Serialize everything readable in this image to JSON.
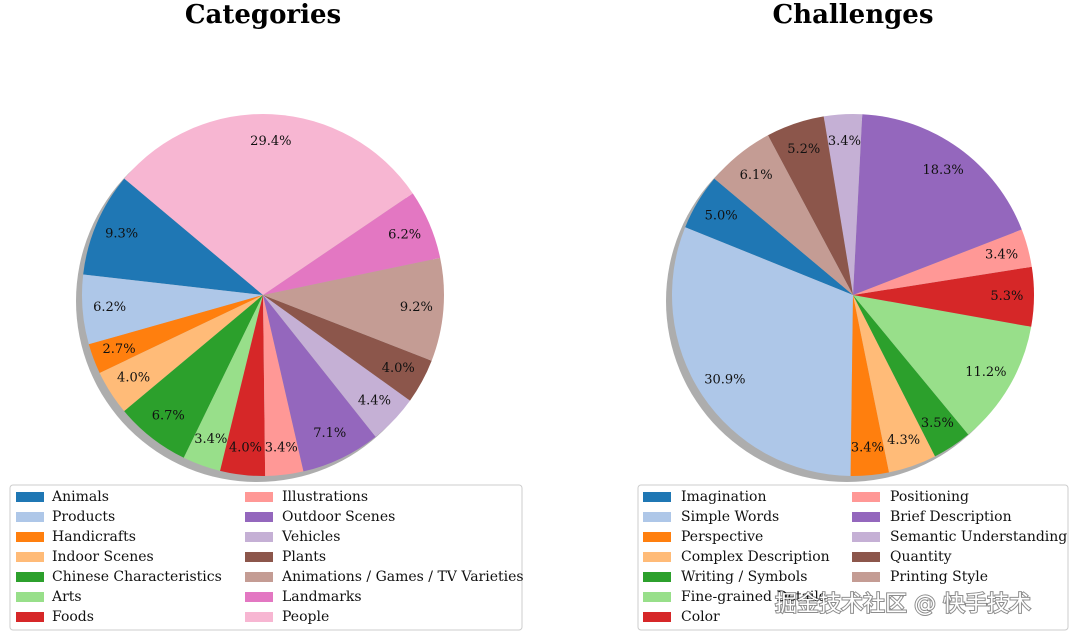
{
  "chart_data": [
    {
      "type": "pie",
      "title": "Categories",
      "categories": [
        "Animals",
        "Products",
        "Handicrafts",
        "Indoor Scenes",
        "Chinese Characteristics",
        "Arts",
        "Foods",
        "Illustrations",
        "Outdoor Scenes",
        "Vehicles",
        "Plants",
        "Animations / Games / TV Varieties",
        "Landmarks",
        "People"
      ],
      "values": [
        9.3,
        6.2,
        2.7,
        4.0,
        6.7,
        3.4,
        4.0,
        3.4,
        7.1,
        4.4,
        4.0,
        9.2,
        6.2,
        29.4
      ],
      "value_labels": [
        "9.3%",
        "6.2%",
        "2.7%",
        "4.0%",
        "6.7%",
        "3.4%",
        "4.0%",
        "3.4%",
        "7.1%",
        "4.4%",
        "4.0%",
        "9.2%",
        "6.2%",
        "29.4%"
      ],
      "colors": [
        "#1f77b4",
        "#aec7e8",
        "#ff7f0e",
        "#ffbb78",
        "#2ca02c",
        "#98df8a",
        "#d62728",
        "#ff9896",
        "#9467bd",
        "#c5b0d5",
        "#8c564b",
        "#c49c94",
        "#e377c2",
        "#f7b6d2"
      ]
    },
    {
      "type": "pie",
      "title": "Challenges",
      "categories": [
        "Imagination",
        "Simple Words",
        "Perspective",
        "Complex Description",
        "Writing / Symbols",
        "Fine-grained Details",
        "Color",
        "Positioning",
        "Brief Description",
        "Semantic Understanding",
        "Quantity",
        "Printing Style"
      ],
      "values": [
        5.0,
        30.9,
        3.4,
        4.3,
        3.5,
        11.2,
        5.3,
        3.4,
        18.3,
        3.4,
        5.2,
        6.1
      ],
      "value_labels": [
        "5.0%",
        "30.9%",
        "3.4%",
        "4.3%",
        "3.5%",
        "11.2%",
        "5.3%",
        "3.4%",
        "18.3%",
        "3.4%",
        "5.2%",
        "6.1%"
      ],
      "colors": [
        "#1f77b4",
        "#aec7e8",
        "#ff7f0e",
        "#ffbb78",
        "#2ca02c",
        "#98df8a",
        "#d62728",
        "#ff9896",
        "#9467bd",
        "#c5b0d5",
        "#8c564b",
        "#c49c94"
      ]
    }
  ],
  "watermark": "掘金技术社区 @ 快手技术"
}
